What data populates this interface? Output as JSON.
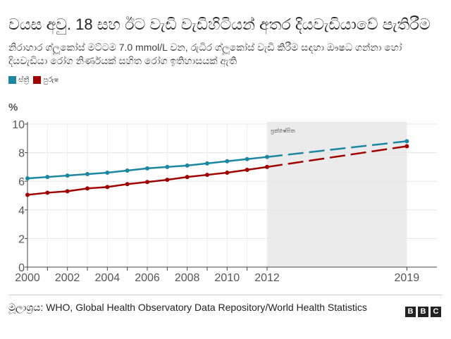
{
  "title": "වයස අවු. 18 සහ ඊට වැඩි වැඩිහිටියන් අතර දියවැඩියාවේ පැතිරීම",
  "subtitle": "නිරාහාර ග්ලූකෝස් මට්ටම 7.0 mmol/L වන, රුධිර ග්ලූකෝස් වැඩි කිරීම සඳහා ඖෂධ ගන්නා හෝ දියවැඩියා රෝග නිර්ණයක් සහිත රෝග ඉතිහාසයක් ඇති",
  "source": "මූලාශ්‍රය: WHO, Global Health Observatory Data Repository/World Health Statistics",
  "logo": "BBC",
  "chart_data": {
    "type": "line",
    "ylabel": "%",
    "ylim": [
      0,
      10
    ],
    "yticks": [
      "0",
      "2",
      "4",
      "6",
      "8",
      "10"
    ],
    "xticks": [
      "2000",
      "2002",
      "2004",
      "2006",
      "2008",
      "2010",
      "2012",
      "2019"
    ],
    "grid": true,
    "legend_placement": "top-left",
    "annotation": {
      "label": "ප්‍රක්ෂේපිත",
      "x_range": [
        2012,
        2019
      ],
      "color": "#ebebeb"
    },
    "x": [
      2000,
      2001,
      2002,
      2003,
      2004,
      2005,
      2006,
      2007,
      2008,
      2009,
      2010,
      2011,
      2012,
      2019
    ],
    "series": [
      {
        "name": "ස්ත්‍රී",
        "color": "#1b87a1",
        "values": [
          6.2,
          6.3,
          6.4,
          6.5,
          6.6,
          6.75,
          6.9,
          7.0,
          7.1,
          7.25,
          7.4,
          7.55,
          7.7,
          8.8
        ]
      },
      {
        "name": "පුරුෂ",
        "color": "#a00000",
        "values": [
          5.05,
          5.2,
          5.3,
          5.5,
          5.6,
          5.8,
          5.95,
          6.1,
          6.3,
          6.45,
          6.6,
          6.8,
          7.0,
          8.45
        ]
      }
    ]
  }
}
